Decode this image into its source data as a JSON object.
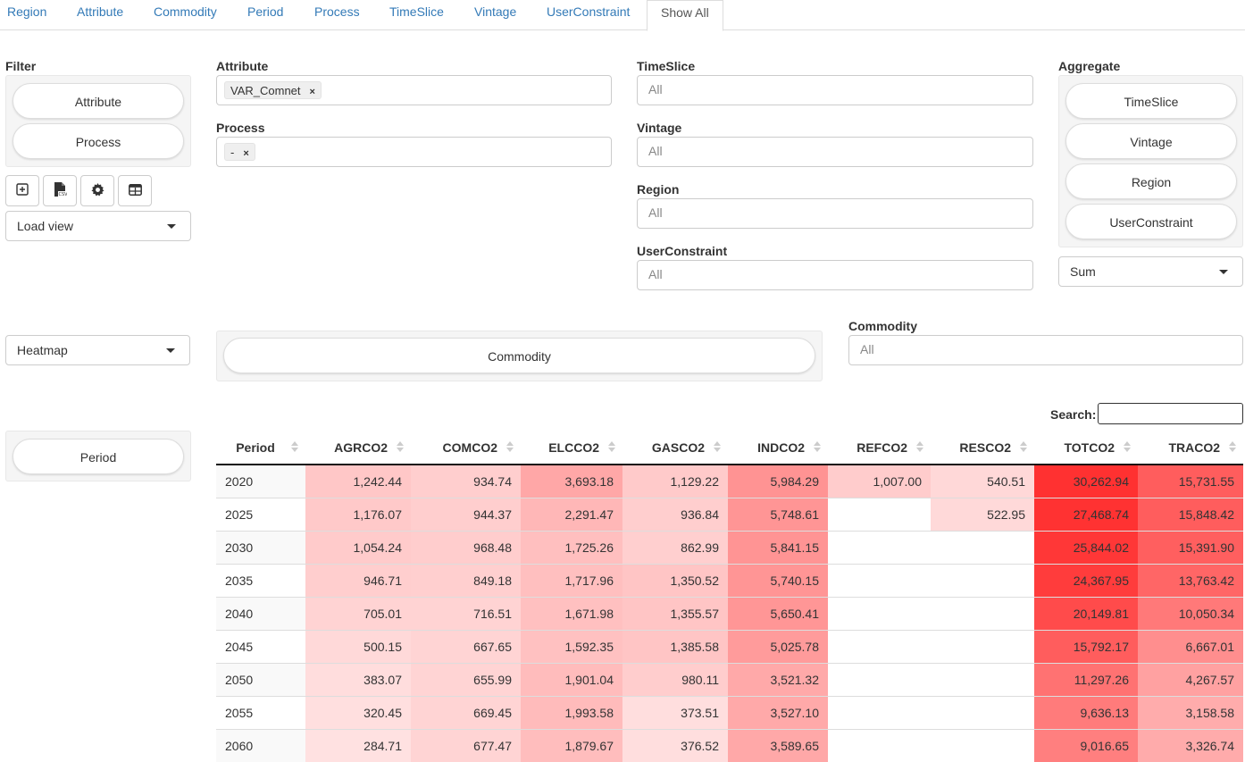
{
  "tabs": [
    "Region",
    "Attribute",
    "Commodity",
    "Period",
    "Process",
    "TimeSlice",
    "Vintage",
    "UserConstraint",
    "Show All"
  ],
  "filter": {
    "label": "Filter",
    "pills": [
      "Attribute",
      "Process"
    ]
  },
  "toolbar_icons": [
    "add-box-icon",
    "csv-file-icon",
    "gear-icon",
    "table-icon"
  ],
  "load_view": "Load view",
  "attribute": {
    "label": "Attribute",
    "chip": "VAR_Comnet",
    "remove": "×"
  },
  "process": {
    "label": "Process",
    "chip": "-",
    "remove": "×"
  },
  "timeslice": {
    "label": "TimeSlice",
    "placeholder": "All"
  },
  "vintage": {
    "label": "Vintage",
    "placeholder": "All"
  },
  "region": {
    "label": "Region",
    "placeholder": "All"
  },
  "userconstraint": {
    "label": "UserConstraint",
    "placeholder": "All"
  },
  "aggregate": {
    "label": "Aggregate",
    "pills": [
      "TimeSlice",
      "Vintage",
      "Region",
      "UserConstraint"
    ],
    "function": "Sum"
  },
  "renderer": "Heatmap",
  "column_pill": "Commodity",
  "commodity": {
    "label": "Commodity",
    "placeholder": "All"
  },
  "row_pill": "Period",
  "search_label": "Search:",
  "heatmap_color": "#ff2a2a",
  "table": {
    "columns": [
      "Period",
      "AGRCO2",
      "COMCO2",
      "ELCCO2",
      "GASCO2",
      "INDCO2",
      "REFCO2",
      "RESCO2",
      "TOTCO2",
      "TRACO2"
    ],
    "rows": [
      [
        "2020",
        "1,242.44",
        "934.74",
        "3,693.18",
        "1,129.22",
        "5,984.29",
        "1,007.00",
        "540.51",
        "30,262.94",
        "15,731.55"
      ],
      [
        "2025",
        "1,176.07",
        "944.37",
        "2,291.47",
        "936.84",
        "5,748.61",
        "",
        "522.95",
        "27,468.74",
        "15,848.42"
      ],
      [
        "2030",
        "1,054.24",
        "968.48",
        "1,725.26",
        "862.99",
        "5,841.15",
        "",
        "",
        "25,844.02",
        "15,391.90"
      ],
      [
        "2035",
        "946.71",
        "849.18",
        "1,717.96",
        "1,350.52",
        "5,740.15",
        "",
        "",
        "24,367.95",
        "13,763.42"
      ],
      [
        "2040",
        "705.01",
        "716.51",
        "1,671.98",
        "1,355.57",
        "5,650.41",
        "",
        "",
        "20,149.81",
        "10,050.34"
      ],
      [
        "2045",
        "500.15",
        "667.65",
        "1,592.35",
        "1,385.58",
        "5,025.78",
        "",
        "",
        "15,792.17",
        "6,667.01"
      ],
      [
        "2050",
        "383.07",
        "655.99",
        "1,901.04",
        "980.11",
        "3,521.32",
        "",
        "",
        "11,297.26",
        "4,267.57"
      ],
      [
        "2055",
        "320.45",
        "669.45",
        "1,993.58",
        "373.51",
        "3,527.10",
        "",
        "",
        "9,636.13",
        "3,158.58"
      ],
      [
        "2060",
        "284.71",
        "677.47",
        "1,879.67",
        "376.52",
        "3,589.65",
        "",
        "",
        "9,016.65",
        "3,326.74"
      ]
    ]
  }
}
